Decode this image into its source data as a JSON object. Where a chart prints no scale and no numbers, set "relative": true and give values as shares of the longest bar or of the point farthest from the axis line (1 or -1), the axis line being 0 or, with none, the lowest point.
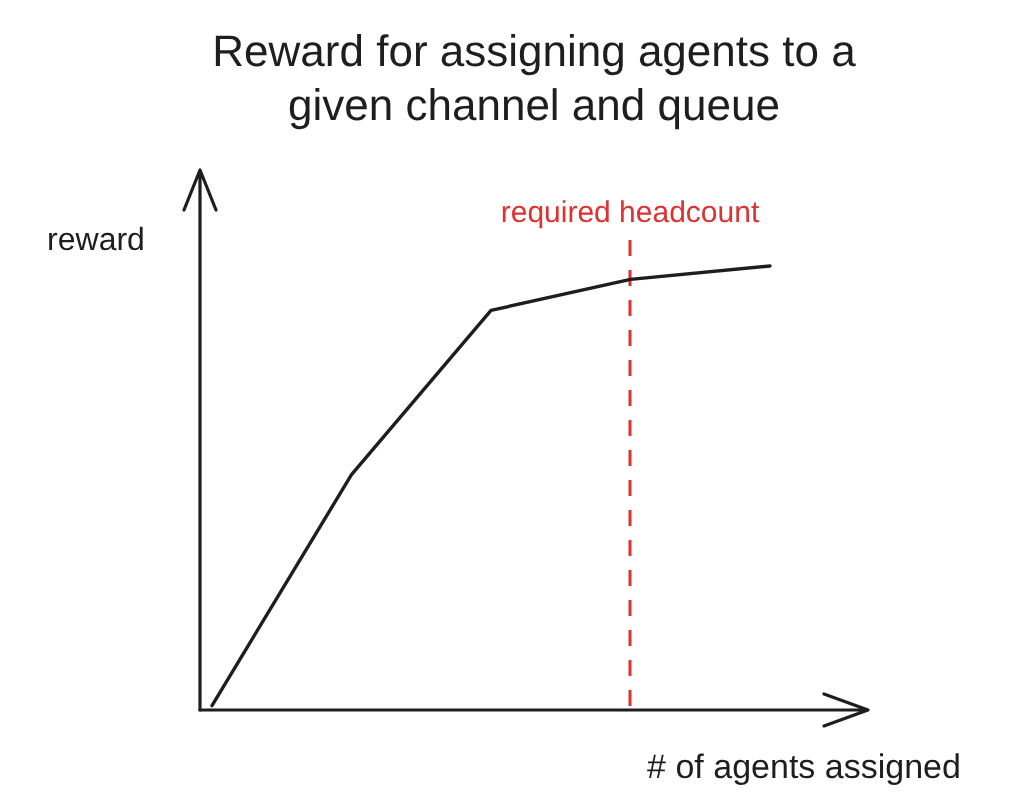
{
  "chart_data": {
    "type": "line",
    "title": "Reward for assigning agents to a given channel and queue",
    "xlabel": "# of agents assigned",
    "ylabel": "reward",
    "relative": true,
    "categories": [
      null,
      null,
      null,
      null,
      null
    ],
    "series": [
      {
        "color": "#1e1e1e",
        "values": [
          0.01,
          0.53,
          0.9,
          0.97,
          1
        ]
      }
    ],
    "annotations": [
      "required headcount"
    ]
  }
}
